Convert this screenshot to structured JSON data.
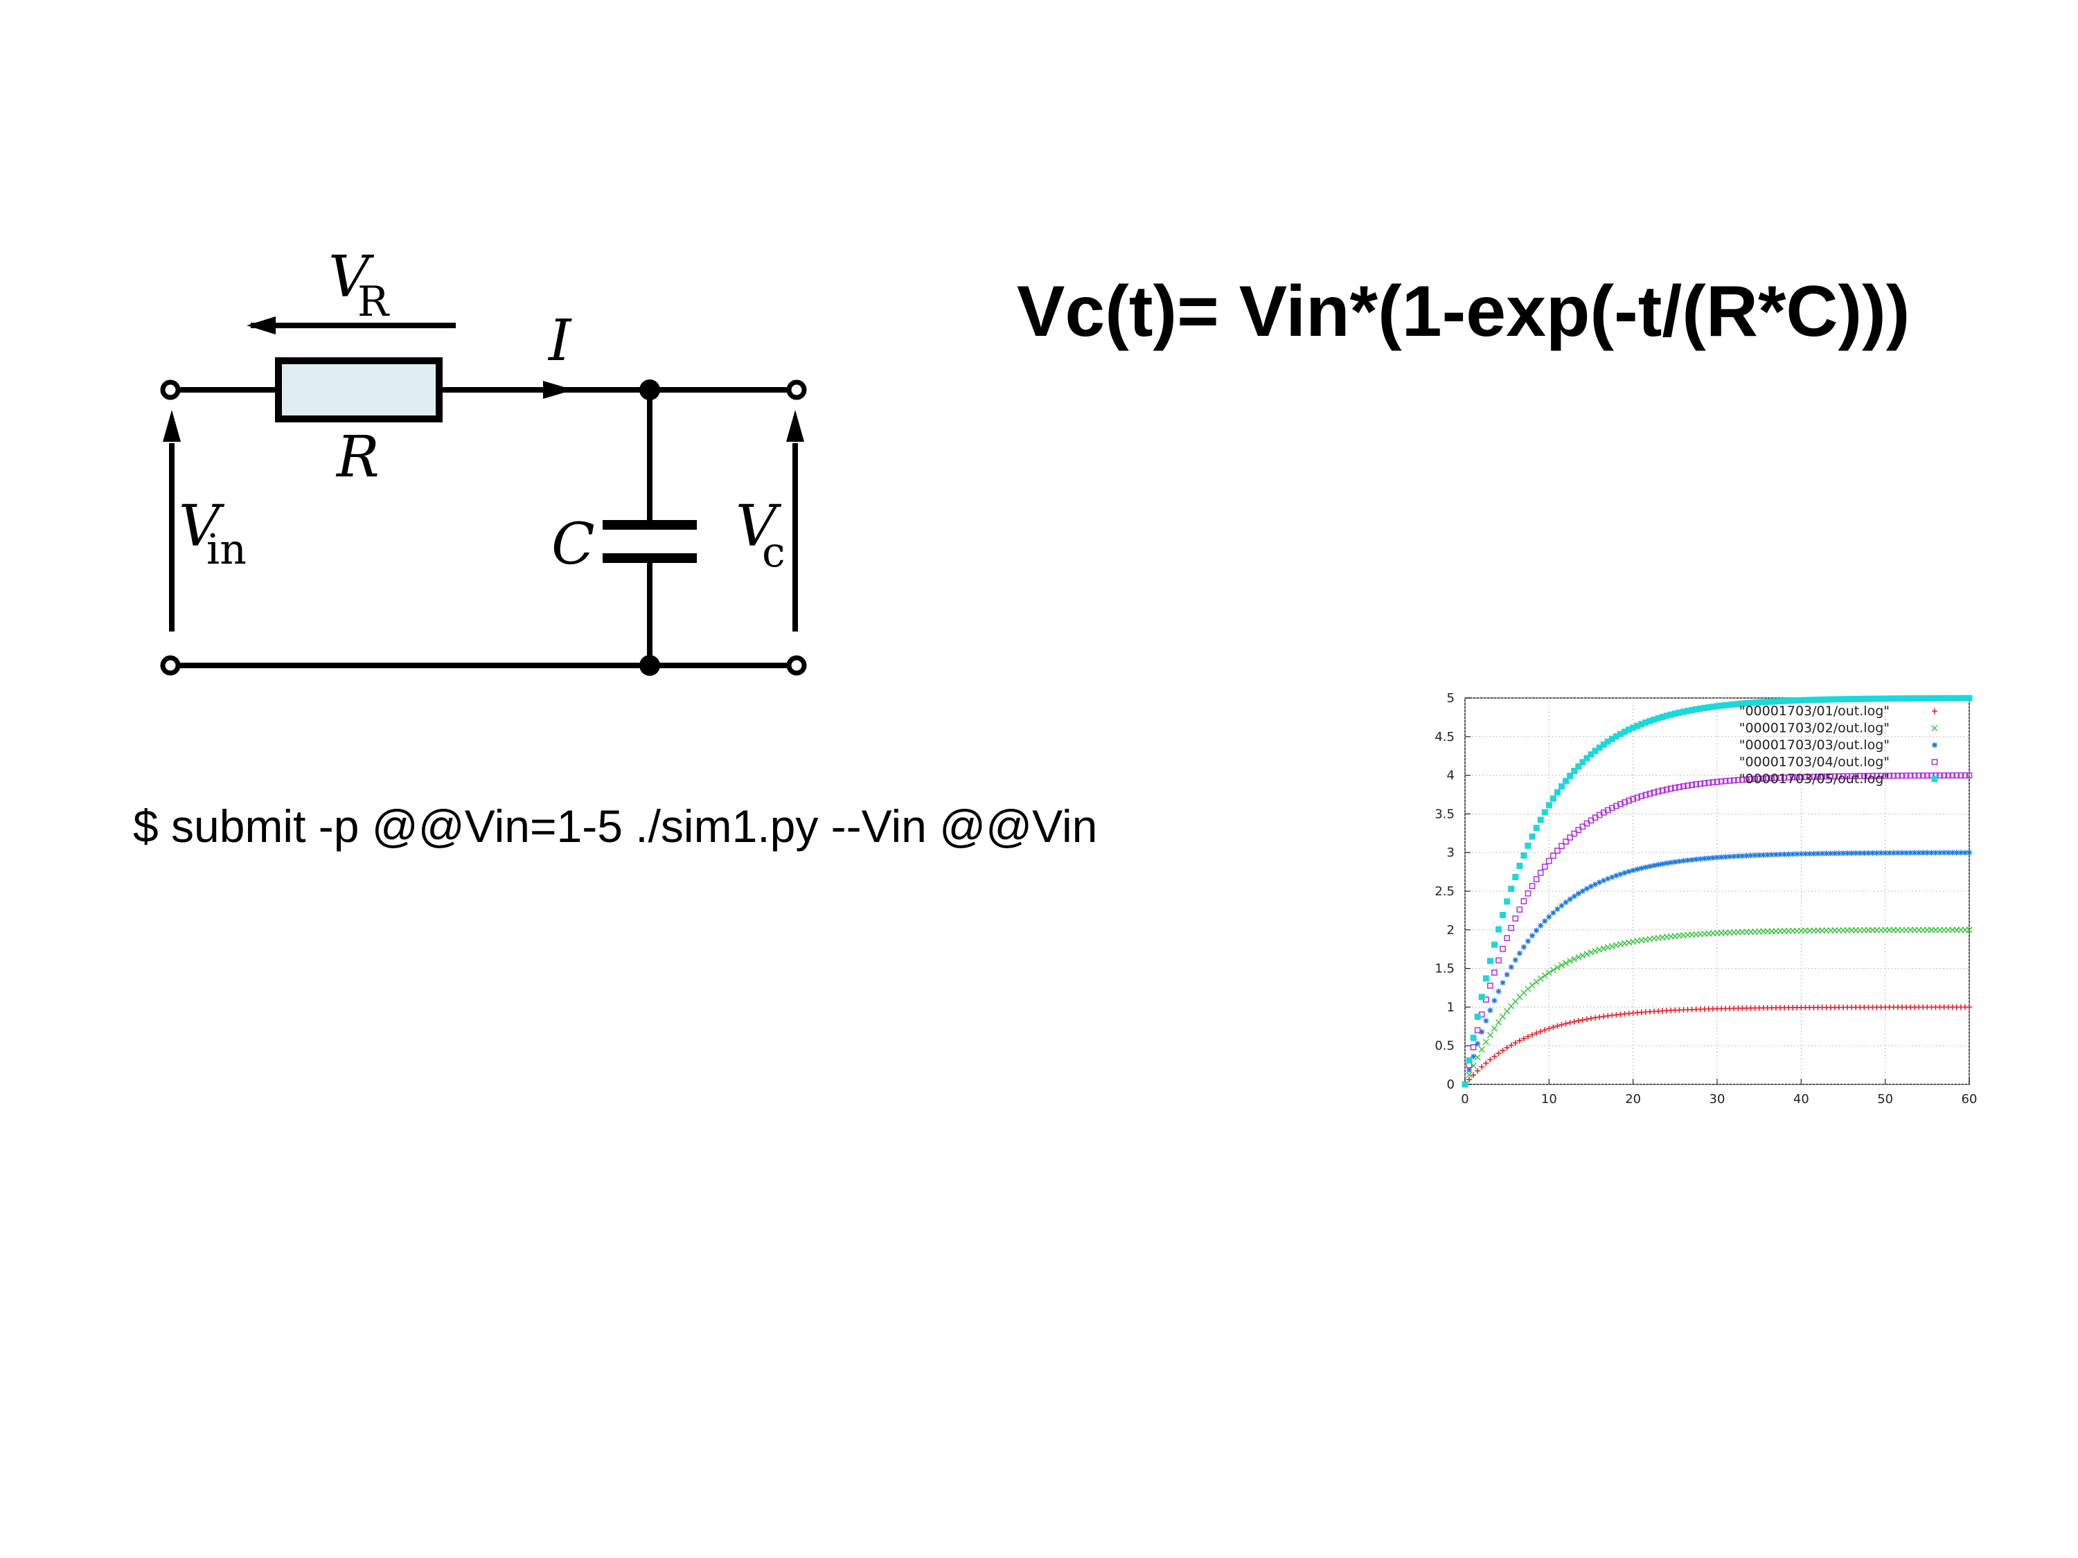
{
  "formula": "Vc(t)= Vin*(1-exp(-t/(R*C)))",
  "command": "$ submit -p @@Vin=1-5 ./sim1.py --Vin @@Vin",
  "circuit": {
    "vr_main": "V",
    "vr_sub": "R",
    "current": "I",
    "resistor": "R",
    "vin_main": "V",
    "vin_sub": "in",
    "capacitor": "C",
    "vc_main": "V",
    "vc_sub": "c"
  },
  "chart_data": {
    "type": "scatter",
    "title": "",
    "xlabel": "",
    "ylabel": "",
    "xlim": [
      0,
      60
    ],
    "ylim": [
      0,
      5
    ],
    "xticks": [
      "0",
      "10",
      "20",
      "30",
      "40",
      "50",
      "60"
    ],
    "yticks": [
      "0",
      "0.5",
      "1",
      "1.5",
      "2",
      "2.5",
      "3",
      "3.5",
      "4",
      "4.5",
      "5"
    ],
    "grid": true,
    "legend_position": "top-right",
    "x_step": 0.5,
    "time_constant": 7.8,
    "series": [
      {
        "name": "\"00001703/01/out.log\"",
        "vin": 1,
        "marker": "+",
        "color": "#e8202a"
      },
      {
        "name": "\"00001703/02/out.log\"",
        "vin": 2,
        "marker": "x",
        "color": "#33c43a"
      },
      {
        "name": "\"00001703/03/out.log\"",
        "vin": 3,
        "marker": "*",
        "color": "#1a78e0"
      },
      {
        "name": "\"00001703/04/out.log\"",
        "vin": 4,
        "marker": "square-open",
        "color": "#b02ee0"
      },
      {
        "name": "\"00001703/05/out.log\"",
        "vin": 5,
        "marker": "square-filled",
        "color": "#1cd8d8"
      }
    ]
  }
}
